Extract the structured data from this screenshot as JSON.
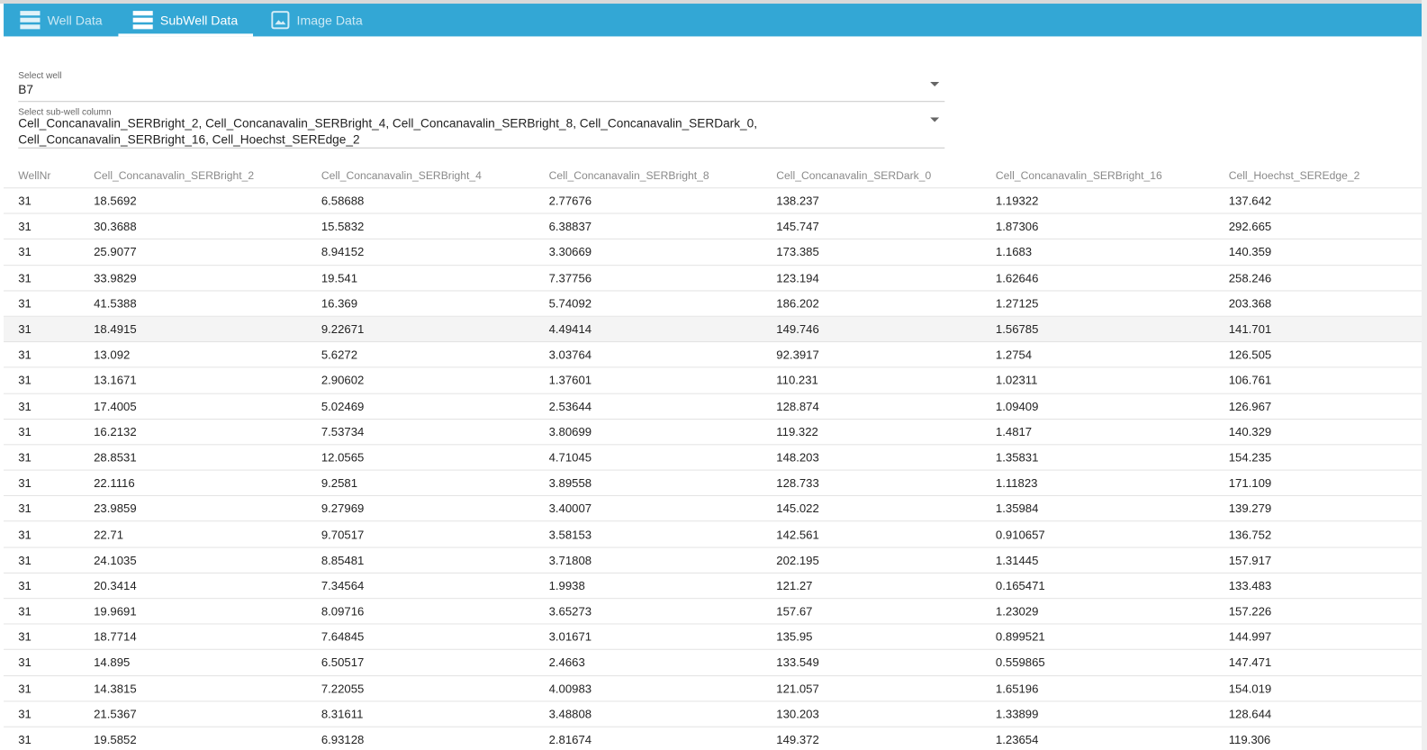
{
  "tabs": [
    "Well Data",
    "SubWell Data",
    "Image Data"
  ],
  "well_select": {
    "label": "Select well",
    "value": "B7"
  },
  "column_select": {
    "label": "Select sub-well column",
    "value": "Cell_Concanavalin_SERBright_2, Cell_Concanavalin_SERBright_4, Cell_Concanavalin_SERBright_8, Cell_Concanavalin_SERDark_0, Cell_Concanavalin_SERBright_16, Cell_Hoechst_SEREdge_2"
  },
  "table": {
    "columns": [
      "WellNr",
      "Cell_Concanavalin_SERBright_2",
      "Cell_Concanavalin_SERBright_4",
      "Cell_Concanavalin_SERBright_8",
      "Cell_Concanavalin_SERDark_0",
      "Cell_Concanavalin_SERBright_16",
      "Cell_Hoechst_SEREdge_2"
    ],
    "rows": [
      [
        "31",
        "18.5692",
        "6.58688",
        "2.77676",
        "138.237",
        "1.19322",
        "137.642"
      ],
      [
        "31",
        "30.3688",
        "15.5832",
        "6.38837",
        "145.747",
        "1.87306",
        "292.665"
      ],
      [
        "31",
        "25.9077",
        "8.94152",
        "3.30669",
        "173.385",
        "1.1683",
        "140.359"
      ],
      [
        "31",
        "33.9829",
        "19.541",
        "7.37756",
        "123.194",
        "1.62646",
        "258.246"
      ],
      [
        "31",
        "41.5388",
        "16.369",
        "5.74092",
        "186.202",
        "1.27125",
        "203.368"
      ],
      [
        "31",
        "18.4915",
        "9.22671",
        "4.49414",
        "149.746",
        "1.56785",
        "141.701"
      ],
      [
        "31",
        "13.092",
        "5.6272",
        "3.03764",
        "92.3917",
        "1.2754",
        "126.505"
      ],
      [
        "31",
        "13.1671",
        "2.90602",
        "1.37601",
        "110.231",
        "1.02311",
        "106.761"
      ],
      [
        "31",
        "17.4005",
        "5.02469",
        "2.53644",
        "128.874",
        "1.09409",
        "126.967"
      ],
      [
        "31",
        "16.2132",
        "7.53734",
        "3.80699",
        "119.322",
        "1.4817",
        "140.329"
      ],
      [
        "31",
        "28.8531",
        "12.0565",
        "4.71045",
        "148.203",
        "1.35831",
        "154.235"
      ],
      [
        "31",
        "22.1116",
        "9.2581",
        "3.89558",
        "128.733",
        "1.11823",
        "171.109"
      ],
      [
        "31",
        "23.9859",
        "9.27969",
        "3.40007",
        "145.022",
        "1.35984",
        "139.279"
      ],
      [
        "31",
        "22.71",
        "9.70517",
        "3.58153",
        "142.561",
        "0.910657",
        "136.752"
      ],
      [
        "31",
        "24.1035",
        "8.85481",
        "3.71808",
        "202.195",
        "1.31445",
        "157.917"
      ],
      [
        "31",
        "20.3414",
        "7.34564",
        "1.9938",
        "121.27",
        "0.165471",
        "133.483"
      ],
      [
        "31",
        "19.9691",
        "8.09716",
        "3.65273",
        "157.67",
        "1.23029",
        "157.226"
      ],
      [
        "31",
        "18.7714",
        "7.64845",
        "3.01671",
        "135.95",
        "0.899521",
        "144.997"
      ],
      [
        "31",
        "14.895",
        "6.50517",
        "2.4663",
        "133.549",
        "0.559865",
        "147.471"
      ],
      [
        "31",
        "14.3815",
        "7.22055",
        "4.00983",
        "121.057",
        "1.65196",
        "154.019"
      ],
      [
        "31",
        "21.5367",
        "8.31611",
        "3.48808",
        "130.203",
        "1.33899",
        "128.644"
      ],
      [
        "31",
        "19.5852",
        "6.93128",
        "2.81674",
        "149.372",
        "1.23654",
        "119.306"
      ]
    ]
  }
}
